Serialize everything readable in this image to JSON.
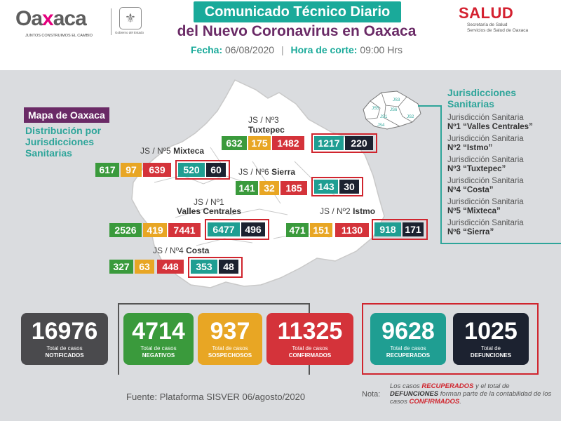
{
  "header": {
    "logo_word_left": "Oa",
    "logo_word_x": "x",
    "logo_word_right": "aca",
    "logo_tagline": "JUNTOS CONSTRUIMOS EL CAMBIO",
    "seal_caption": "Gobierno del Estado",
    "title_line1": "Comunicado Técnico Diario",
    "title_line2": "del Nuevo Coronavirus en Oaxaca",
    "fecha_label": "Fecha:",
    "fecha_value": "06/08/2020",
    "hora_label": "Hora de corte:",
    "hora_value": "09:00 Hrs",
    "salud_logo": "SALUD",
    "salud_sub1": "Secretaría de Salud",
    "salud_sub2": "Servicios de Salud de Oaxaca"
  },
  "map_badge": "Mapa de Oaxaca",
  "distribution_title": "Distribución por Jurisdicciones Sanitarias",
  "legend": {
    "title": "Jurisdicciones Sanitarias",
    "items": [
      {
        "line1": "Jurisdicción Sanitaria",
        "line2": "Nº1 “Valles Centrales”"
      },
      {
        "line1": "Jurisdicción Sanitaria",
        "line2": "Nº2 “Istmo”"
      },
      {
        "line1": "Jurisdicción Sanitaria",
        "line2": "Nº3 “Tuxtepec”"
      },
      {
        "line1": "Jurisdicción Sanitaria",
        "line2": "Nº4 “Costa”"
      },
      {
        "line1": "Jurisdicción Sanitaria",
        "line2": "Nº5 “Mixteca”"
      },
      {
        "line1": "Jurisdicción Sanitaria",
        "line2": "Nº6 “Sierra”"
      }
    ],
    "mini_map_labels": [
      "JS3",
      "JS5",
      "JS6",
      "JS1",
      "JS4",
      "JS2"
    ]
  },
  "regions": {
    "tuxtepec": {
      "label1": "JS / Nº3",
      "label2": "Tuxtepec",
      "notificados": "632",
      "sospechosos": "175",
      "confirmados": "1482",
      "recuperados": "1217",
      "defunciones": "220"
    },
    "mixteca": {
      "label": "JS / Nº5",
      "label_bold": "Mixteca",
      "notificados": "617",
      "sospechosos": "97",
      "confirmados": "639",
      "recuperados": "520",
      "defunciones": "60"
    },
    "sierra": {
      "label": "JS / Nº6",
      "label_bold": "Sierra",
      "notificados": "141",
      "sospechosos": "32",
      "confirmados": "185",
      "recuperados": "143",
      "defunciones": "30"
    },
    "valles": {
      "label1": "JS / Nº1",
      "label2": "Valles Centrales",
      "notificados": "2526",
      "sospechosos": "419",
      "confirmados": "7441",
      "recuperados": "6477",
      "defunciones": "496"
    },
    "istmo": {
      "label": "JS / Nº2",
      "label_bold": "Istmo",
      "notificados": "471",
      "sospechosos": "151",
      "confirmados": "1130",
      "recuperados": "918",
      "defunciones": "171"
    },
    "costa": {
      "label": "JS / Nº4",
      "label_bold": "Costa",
      "notificados": "327",
      "sospechosos": "63",
      "confirmados": "448",
      "recuperados": "353",
      "defunciones": "48"
    }
  },
  "totals": {
    "notificados": {
      "value": "16976",
      "cap1": "Total de casos",
      "cap2": "NOTIFICADOS"
    },
    "negativos": {
      "value": "4714",
      "cap1": "Total de casos",
      "cap2": "NEGATIVOS"
    },
    "sospechosos": {
      "value": "937",
      "cap1": "Total de casos",
      "cap2": "SOSPECHOSOS"
    },
    "confirmados": {
      "value": "11325",
      "cap1": "Total de casos",
      "cap2": "CONFIRMADOS"
    },
    "recuperados": {
      "value": "9628",
      "cap1": "Total de casos",
      "cap2": "RECUPERADOS"
    },
    "defunciones": {
      "value": "1025",
      "cap1": "Total de",
      "cap2": "DEFUNCIONES"
    }
  },
  "footer": {
    "fuente": "Fuente: Plataforma SISVER 06/agosto/2020",
    "nota_label": "Nota:",
    "nota_p1": "Los casos ",
    "nota_recuperados": "RECUPERADOS",
    "nota_p2": " y el total de ",
    "nota_defunciones": "DEFUNCIONES",
    "nota_p3": " forman parte de la contabilidad de los casos ",
    "nota_confirmados": "CONFIRMADOS",
    "nota_p4": "."
  },
  "colors": {
    "notificados": "#4a4a4d",
    "negativos": "#3a9a3c",
    "sospechosos": "#e8a624",
    "confirmados": "#d4333a",
    "recuperados": "#1f9e92",
    "defunciones": "#1c2230",
    "teal_accent": "#2ea59a",
    "purple_accent": "#6a2a66"
  }
}
